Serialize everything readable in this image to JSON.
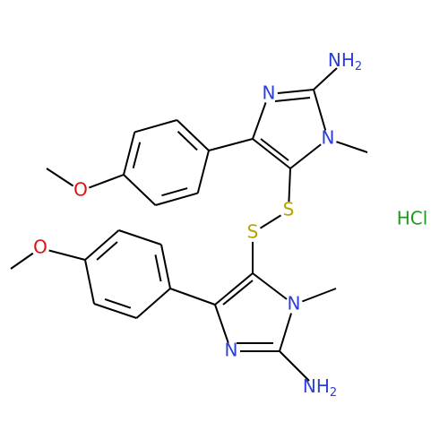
{
  "molecule": {
    "top_amine": {
      "main": "NH",
      "sub": "2"
    },
    "top_ring_n3": "N",
    "top_ring_n1": "N",
    "top_methoxy_o": "O",
    "sulfur_1": "S",
    "sulfur_2": "S",
    "bottom_ring_n1": "N",
    "bottom_ring_n3": "N",
    "bottom_amine": {
      "main": "NH",
      "sub": "2"
    },
    "bottom_methoxy_o": "O",
    "salt": "HCl"
  }
}
